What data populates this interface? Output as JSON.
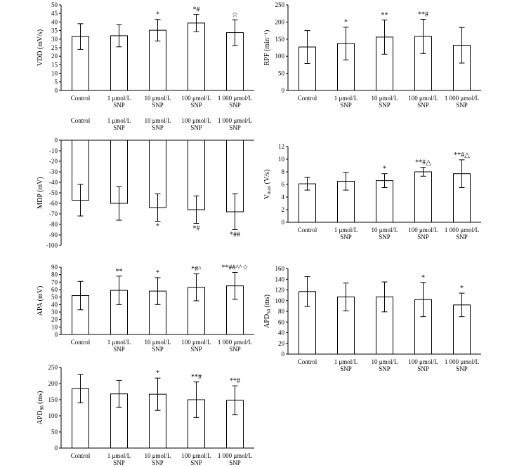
{
  "chart_data": [
    {
      "type": "bar",
      "ylabel": "VDD (mV/s)",
      "ylim": [
        0,
        50
      ],
      "yticks": [
        0,
        5,
        10,
        15,
        20,
        25,
        30,
        35,
        40,
        45,
        50
      ],
      "categories": [
        [
          "Control"
        ],
        [
          "1 μmol/L",
          "SNP"
        ],
        [
          "10 μmol/L",
          "SNP"
        ],
        [
          "100 μmol/L",
          "SNP"
        ],
        [
          "1 000 μmol/L",
          "SNP"
        ]
      ],
      "values": [
        31.5,
        32,
        35.2,
        39.4,
        33.8
      ],
      "errors": [
        7.5,
        6.5,
        6.3,
        5,
        7.5
      ],
      "annotations": [
        "",
        "",
        "*",
        "*#",
        "☆"
      ]
    },
    {
      "type": "bar",
      "ylabel": "RPF (min⁻¹)",
      "ylim": [
        0,
        250
      ],
      "yticks": [
        0,
        50,
        100,
        150,
        200,
        250
      ],
      "categories": [
        [
          "Control"
        ],
        [
          "1 μmol/L",
          "SNP"
        ],
        [
          "10 μmol/L",
          "SNP"
        ],
        [
          "100 μmol/L",
          "SNP"
        ],
        [
          "1 000 μmol/L",
          "SNP"
        ]
      ],
      "values": [
        127,
        137,
        156,
        158,
        132
      ],
      "errors": [
        48,
        48,
        50,
        50,
        52
      ],
      "annotations": [
        "",
        "*",
        "**",
        "**#",
        ""
      ]
    },
    {
      "type": "bar",
      "ylabel": "MDP (mV)",
      "ylim": [
        -100,
        0
      ],
      "yticks": [
        0,
        -10,
        -20,
        -30,
        -40,
        -50,
        -60,
        -70,
        -80,
        -90,
        -100
      ],
      "categories": [
        [
          "Control"
        ],
        [
          "1 μmol/L",
          "SNP"
        ],
        [
          "10 μmol/L",
          "SNP"
        ],
        [
          "100 μmol/L",
          "SNP"
        ],
        [
          "1 000 μmol/L",
          "SNP"
        ]
      ],
      "values": [
        -57,
        -60,
        -64,
        -66,
        -68
      ],
      "errors": [
        15,
        16,
        13,
        13,
        17
      ],
      "annotations": [
        "",
        "",
        "*",
        "*#",
        "*##"
      ]
    },
    {
      "type": "bar",
      "ylabel": "Vmax (V/s)",
      "ylim": [
        0,
        12
      ],
      "yticks": [
        0,
        2,
        4,
        6,
        8,
        10,
        12
      ],
      "categories": [
        [
          "Control"
        ],
        [
          "1 μmol/L",
          "SNP"
        ],
        [
          "10 μmol/L",
          "SNP"
        ],
        [
          "100 μmol/L",
          "SNP"
        ],
        [
          "1 000 μmol/L",
          "SNP"
        ]
      ],
      "values": [
        6.1,
        6.5,
        6.6,
        8,
        7.7
      ],
      "errors": [
        1,
        1.4,
        1.1,
        0.7,
        2.2
      ],
      "annotations": [
        "",
        "",
        "*",
        "**#△",
        "**#△"
      ]
    },
    {
      "type": "bar",
      "ylabel": "APA (mV)",
      "ylim": [
        0,
        90
      ],
      "yticks": [
        0,
        10,
        20,
        30,
        40,
        50,
        60,
        70,
        80,
        90
      ],
      "categories": [
        [
          "Control"
        ],
        [
          "1 μmol/L",
          "SNP"
        ],
        [
          "10 μmol/L",
          "SNP"
        ],
        [
          "100 μmol/L",
          "SNP"
        ],
        [
          "1 000 μmol/L",
          "SNP"
        ]
      ],
      "values": [
        52,
        59,
        58,
        63,
        65
      ],
      "errors": [
        19,
        19,
        18,
        18,
        18
      ],
      "annotations": [
        "",
        "**",
        "*",
        "*#^",
        "**##^^☆"
      ]
    },
    {
      "type": "bar",
      "ylabel": "APD50 (ms)",
      "ylim": [
        0,
        160
      ],
      "yticks": [
        0,
        20,
        40,
        60,
        80,
        100,
        120,
        140,
        160
      ],
      "categories": [
        [
          "Control"
        ],
        [
          "1 μmol/L",
          "SNP"
        ],
        [
          "10 μmol/L",
          "SNP"
        ],
        [
          "100 μmol/L",
          "SNP"
        ],
        [
          "1 000 μmol/L",
          "SNP"
        ]
      ],
      "values": [
        117,
        107,
        107,
        102,
        92
      ],
      "errors": [
        28,
        26,
        28,
        32,
        22
      ],
      "annotations": [
        "",
        "",
        "",
        "*",
        "*"
      ]
    },
    {
      "type": "bar",
      "ylabel": "APD90 (ms)",
      "ylim": [
        0,
        250
      ],
      "yticks": [
        0,
        50,
        100,
        150,
        200,
        250
      ],
      "categories": [
        [
          "Control"
        ],
        [
          "1 μmol/L",
          "SNP"
        ],
        [
          "10 μmol/L",
          "SNP"
        ],
        [
          "100 μmol/L",
          "SNP"
        ],
        [
          "1 000 μmol/L",
          "SNP"
        ]
      ],
      "values": [
        184,
        168,
        167,
        150,
        148
      ],
      "errors": [
        44,
        42,
        50,
        55,
        45
      ],
      "annotations": [
        "",
        "",
        "*",
        "**#",
        "**#"
      ]
    }
  ]
}
